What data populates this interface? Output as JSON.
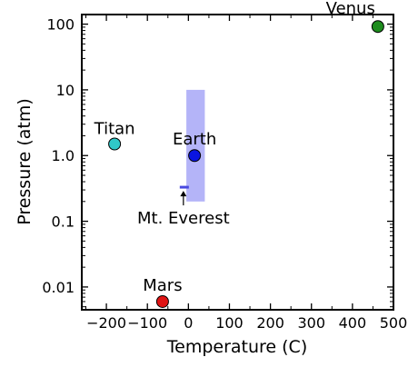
{
  "chart_data": {
    "type": "scatter",
    "title": "",
    "xlabel": "Temperature (C)",
    "ylabel": "Pressure (atm)",
    "xlim": [
      -260,
      500
    ],
    "ylim": [
      0.0045,
      140
    ],
    "yscale": "log",
    "grid": false,
    "x_ticks": [
      {
        "value": -200,
        "label": "−200"
      },
      {
        "value": -100,
        "label": "−100"
      },
      {
        "value": 0,
        "label": "0"
      },
      {
        "value": 100,
        "label": "100"
      },
      {
        "value": 200,
        "label": "200"
      },
      {
        "value": 300,
        "label": "300"
      },
      {
        "value": 400,
        "label": "400"
      },
      {
        "value": 500,
        "label": "500"
      }
    ],
    "y_ticks": [
      {
        "value": 0.01,
        "label": "0.01"
      },
      {
        "value": 0.1,
        "label": "0.1"
      },
      {
        "value": 1,
        "label": "1.0"
      },
      {
        "value": 10,
        "label": "10"
      },
      {
        "value": 100,
        "label": "100"
      }
    ],
    "points": [
      {
        "name": "Venus",
        "x": 462,
        "y": 92,
        "color": "#1e8c1e"
      },
      {
        "name": "Earth",
        "x": 15,
        "y": 1.0,
        "color": "#0a14e0"
      },
      {
        "name": "Titan",
        "x": -180,
        "y": 1.5,
        "color": "#30c8c8"
      },
      {
        "name": "Mars",
        "x": -63,
        "y": 0.006,
        "color": "#e01414"
      }
    ],
    "shaded_range": {
      "x": [
        -5,
        40
      ],
      "y": [
        0.2,
        10
      ],
      "color": "#b4b4f8"
    },
    "annotation": {
      "text": "Mt. Everest",
      "x": -10,
      "y": 0.33,
      "color": "#4848e0"
    }
  }
}
